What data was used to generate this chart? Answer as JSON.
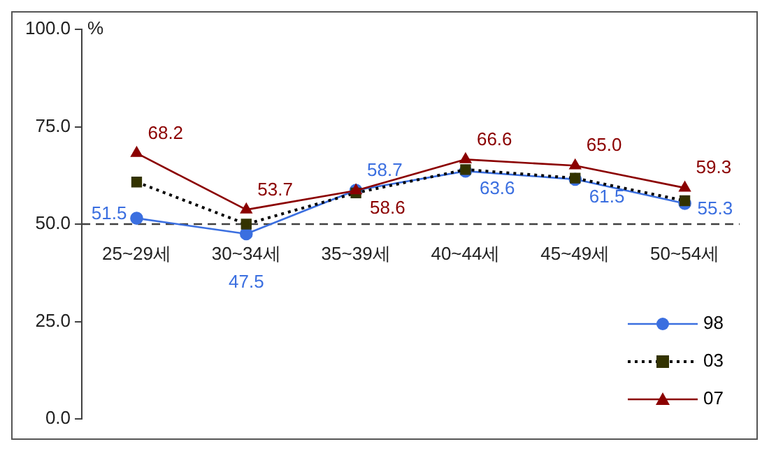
{
  "chart_data": {
    "type": "line",
    "ylabel": "%",
    "categories": [
      "25~29세",
      "30~34세",
      "35~39세",
      "40~44세",
      "45~49세",
      "50~54세"
    ],
    "series": [
      {
        "name": "98",
        "color": "#3b6fe0",
        "marker": "circle",
        "line_style": "solid",
        "values": [
          51.5,
          47.5,
          58.7,
          63.6,
          61.5,
          55.3
        ],
        "value_labels": [
          "51.5",
          "47.5",
          "58.7",
          "63.6",
          "61.5",
          "55.3"
        ]
      },
      {
        "name": "03",
        "color": "#333300",
        "marker": "square",
        "line_style": "dotted",
        "values": [
          60.8,
          50.0,
          58.0,
          64.0,
          61.8,
          56.0
        ]
      },
      {
        "name": "07",
        "color": "#8b0000",
        "marker": "triangle",
        "line_style": "solid",
        "values": [
          68.2,
          53.7,
          58.6,
          66.6,
          65.0,
          59.3
        ],
        "value_labels": [
          "68.2",
          "53.7",
          "58.6",
          "66.6",
          "65.0",
          "59.3"
        ]
      }
    ],
    "ylim": [
      0,
      100
    ],
    "yticks": [
      {
        "value": 0,
        "label": "0.0"
      },
      {
        "value": 25,
        "label": "25.0"
      },
      {
        "value": 50,
        "label": "50.0"
      },
      {
        "value": 75,
        "label": "75.0"
      },
      {
        "value": 100,
        "label": "100.0"
      }
    ],
    "ref_lines": [
      {
        "axis": "y",
        "value": 50,
        "color": "#404040",
        "line_style": "dashed"
      }
    ],
    "legend": "bottom right",
    "grid": false
  }
}
